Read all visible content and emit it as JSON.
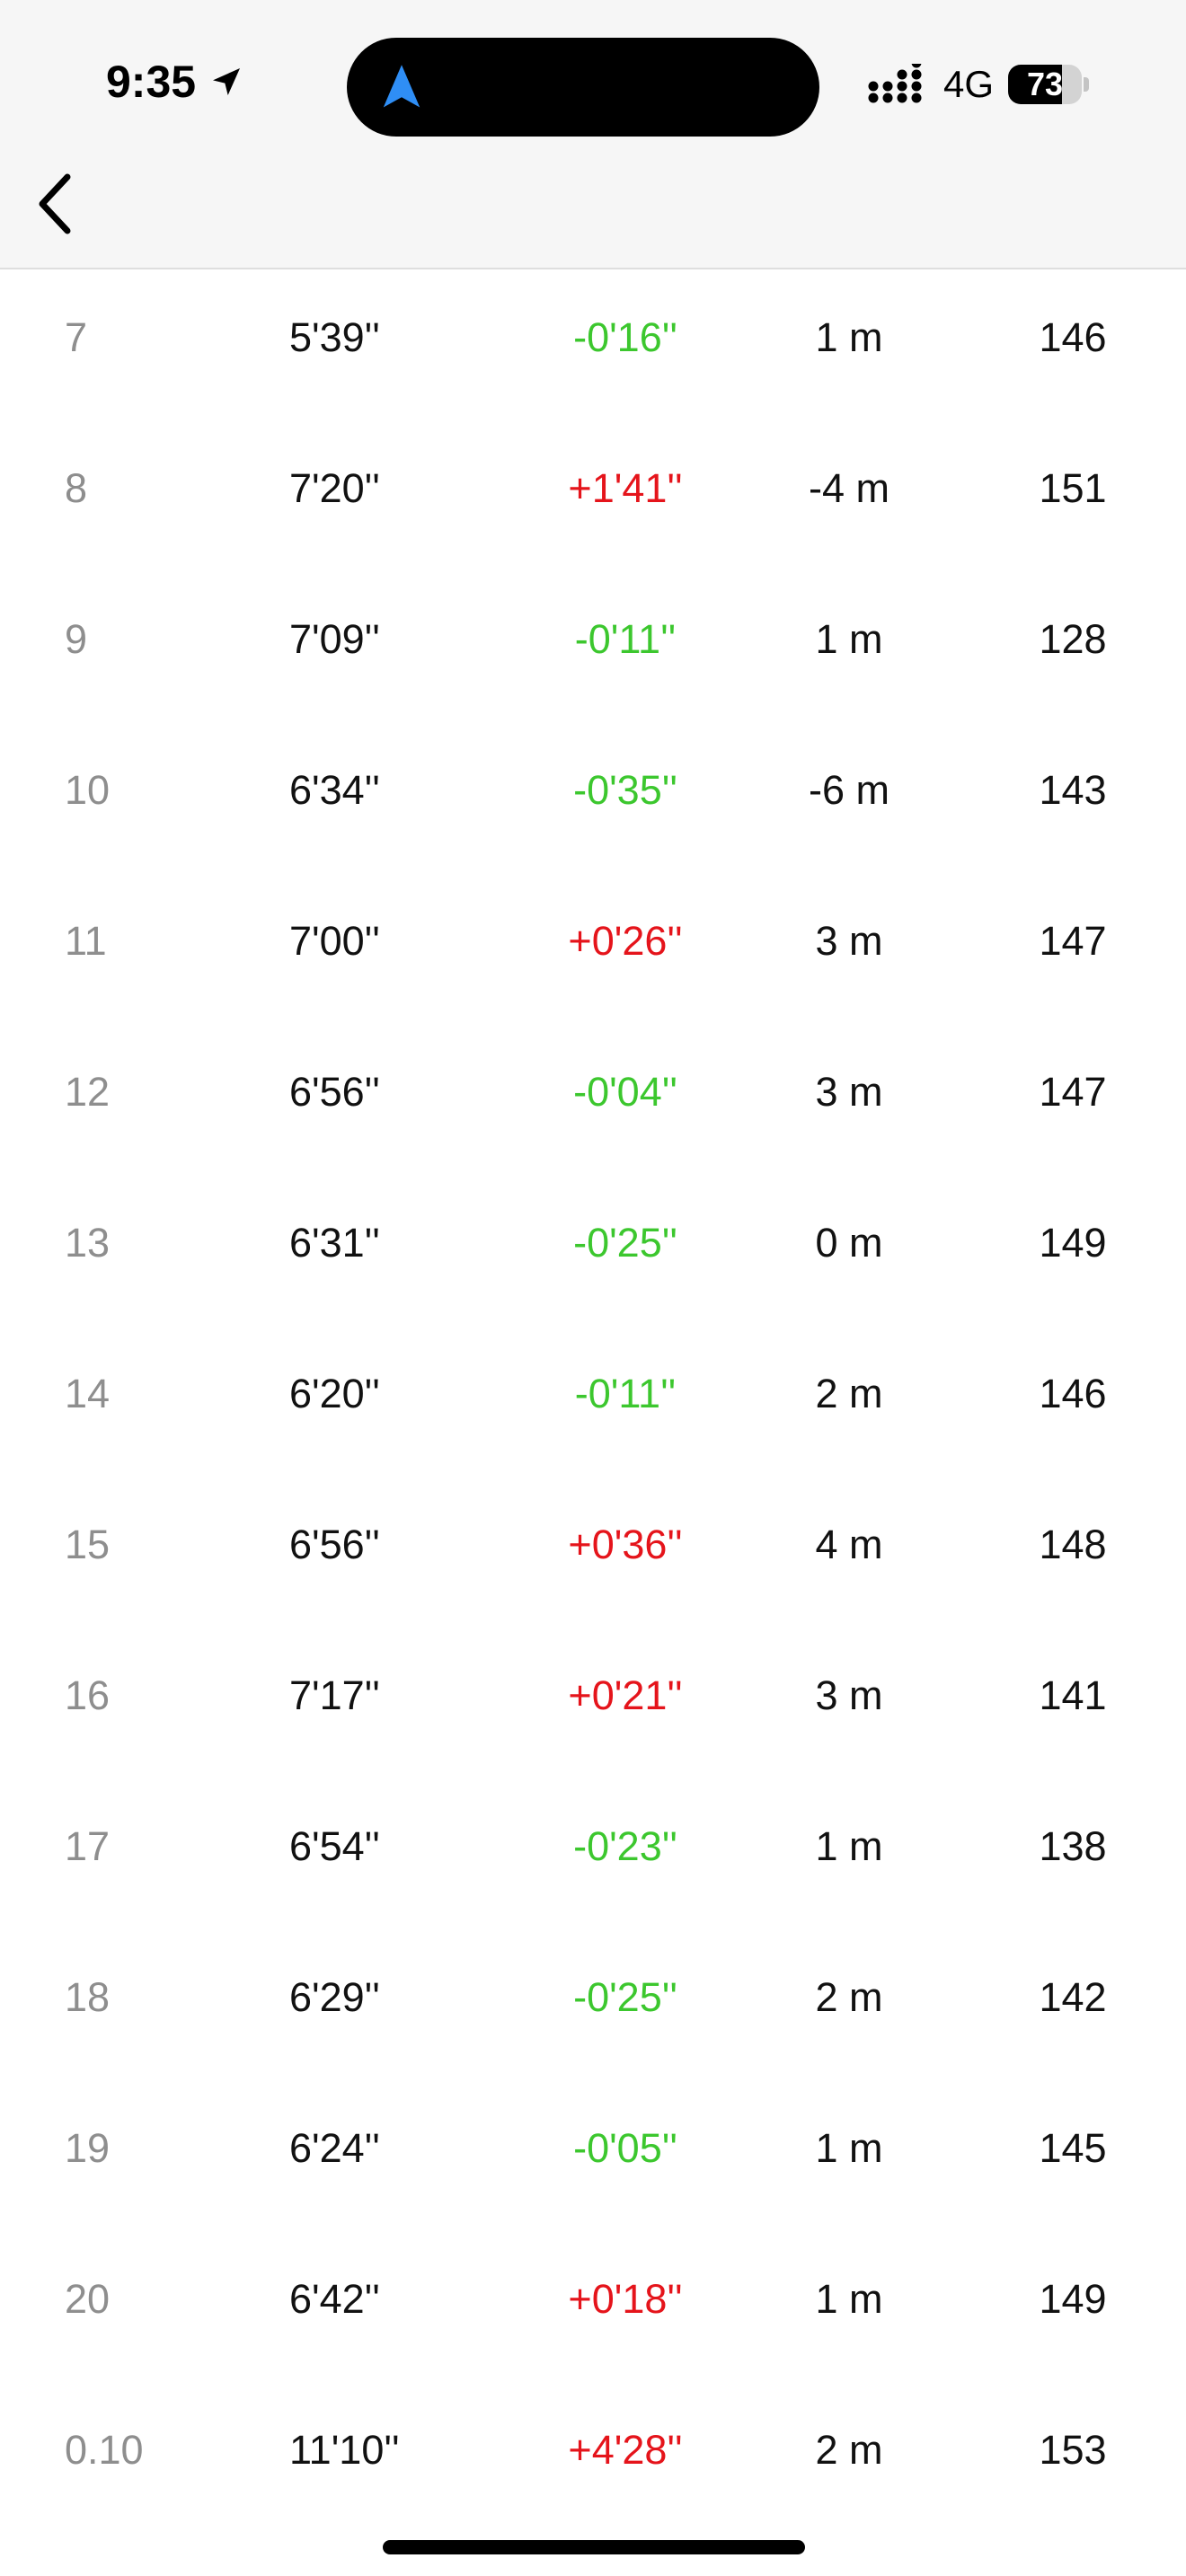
{
  "status_bar": {
    "time": "9:35",
    "network": "4G",
    "battery_level": "73",
    "battery_fraction": 0.73,
    "location_icon": "location-arrow-icon",
    "nav_icon": "navigation-arrow-icon",
    "signal_icon": "signal-dots-icon"
  },
  "header": {
    "back_icon": "chevron-left-icon"
  },
  "colors": {
    "faster": "#3cc72e",
    "slower": "#e5141b",
    "index": "#8e8e8e",
    "nav_accent": "#2f8ef5"
  },
  "splits": [
    {
      "index": "7",
      "pace": "5'39''",
      "diff": "-0'16''",
      "trend": "faster",
      "elevation": "1 m",
      "heart_rate": "146"
    },
    {
      "index": "8",
      "pace": "7'20''",
      "diff": "+1'41''",
      "trend": "slower",
      "elevation": "-4 m",
      "heart_rate": "151"
    },
    {
      "index": "9",
      "pace": "7'09''",
      "diff": "-0'11''",
      "trend": "faster",
      "elevation": "1 m",
      "heart_rate": "128"
    },
    {
      "index": "10",
      "pace": "6'34''",
      "diff": "-0'35''",
      "trend": "faster",
      "elevation": "-6 m",
      "heart_rate": "143"
    },
    {
      "index": "11",
      "pace": "7'00''",
      "diff": "+0'26''",
      "trend": "slower",
      "elevation": "3 m",
      "heart_rate": "147"
    },
    {
      "index": "12",
      "pace": "6'56''",
      "diff": "-0'04''",
      "trend": "faster",
      "elevation": "3 m",
      "heart_rate": "147"
    },
    {
      "index": "13",
      "pace": "6'31''",
      "diff": "-0'25''",
      "trend": "faster",
      "elevation": "0 m",
      "heart_rate": "149"
    },
    {
      "index": "14",
      "pace": "6'20''",
      "diff": "-0'11''",
      "trend": "faster",
      "elevation": "2 m",
      "heart_rate": "146"
    },
    {
      "index": "15",
      "pace": "6'56''",
      "diff": "+0'36''",
      "trend": "slower",
      "elevation": "4 m",
      "heart_rate": "148"
    },
    {
      "index": "16",
      "pace": "7'17''",
      "diff": "+0'21''",
      "trend": "slower",
      "elevation": "3 m",
      "heart_rate": "141"
    },
    {
      "index": "17",
      "pace": "6'54''",
      "diff": "-0'23''",
      "trend": "faster",
      "elevation": "1 m",
      "heart_rate": "138"
    },
    {
      "index": "18",
      "pace": "6'29''",
      "diff": "-0'25''",
      "trend": "faster",
      "elevation": "2 m",
      "heart_rate": "142"
    },
    {
      "index": "19",
      "pace": "6'24''",
      "diff": "-0'05''",
      "trend": "faster",
      "elevation": "1 m",
      "heart_rate": "145"
    },
    {
      "index": "20",
      "pace": "6'42''",
      "diff": "+0'18''",
      "trend": "slower",
      "elevation": "1 m",
      "heart_rate": "149"
    },
    {
      "index": "0.10",
      "pace": "11'10''",
      "diff": "+4'28''",
      "trend": "slower",
      "elevation": "2 m",
      "heart_rate": "153"
    }
  ]
}
